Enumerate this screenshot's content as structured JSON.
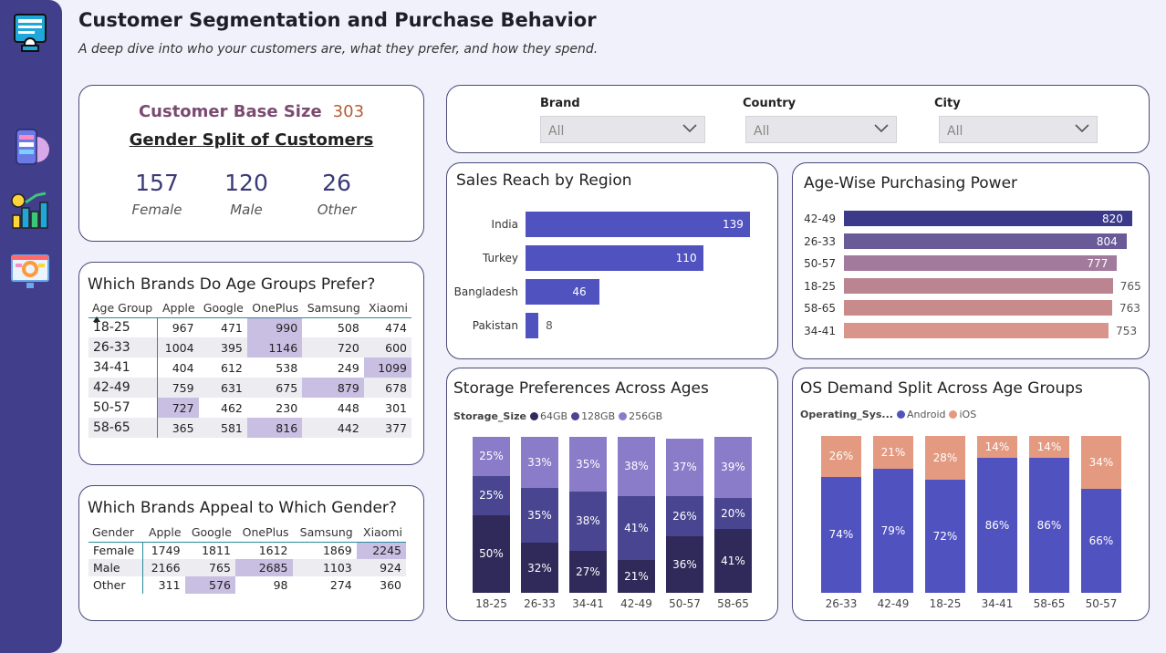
{
  "header": {
    "title": "Customer Segmentation and Purchase Behavior",
    "subtitle": "A deep dive into who your customers are, what they prefer, and how they spend."
  },
  "sidebar": {
    "icons": [
      "dashboard-icon",
      "mobile-app-icon",
      "chart-growth-icon",
      "analytics-monitor-icon"
    ]
  },
  "customer_card": {
    "base_label": "Customer Base Size",
    "base_value": "303",
    "gender_title": "Gender Split of Customers",
    "genders": [
      {
        "value": "157",
        "label": "Female"
      },
      {
        "value": "120",
        "label": "Male"
      },
      {
        "value": "26",
        "label": "Other"
      }
    ]
  },
  "filters": [
    {
      "label": "Brand",
      "value": "All"
    },
    {
      "label": "Country",
      "value": "All"
    },
    {
      "label": "City",
      "value": "All"
    }
  ],
  "age_brand_table": {
    "title": "Which Brands Do Age Groups Prefer?",
    "columns": [
      "Age Group",
      "Apple",
      "Google",
      "OnePlus",
      "Samsung",
      "Xiaomi"
    ],
    "rows": [
      {
        "label": "18-25",
        "values": [
          "967",
          "471",
          "990",
          "508",
          "474"
        ],
        "hl": 2
      },
      {
        "label": "26-33",
        "values": [
          "1004",
          "395",
          "1146",
          "720",
          "600"
        ],
        "hl": 2
      },
      {
        "label": "34-41",
        "values": [
          "404",
          "612",
          "538",
          "249",
          "1099"
        ],
        "hl": 4
      },
      {
        "label": "42-49",
        "values": [
          "759",
          "631",
          "675",
          "879",
          "678"
        ],
        "hl": 3
      },
      {
        "label": "50-57",
        "values": [
          "727",
          "462",
          "230",
          "448",
          "301"
        ],
        "hl": 0
      },
      {
        "label": "58-65",
        "values": [
          "365",
          "581",
          "816",
          "442",
          "377"
        ],
        "hl": 2
      }
    ]
  },
  "gender_brand_table": {
    "title": "Which Brands Appeal to Which Gender?",
    "columns": [
      "Gender",
      "Apple",
      "Google",
      "OnePlus",
      "Samsung",
      "Xiaomi"
    ],
    "rows": [
      {
        "label": "Female",
        "values": [
          "1749",
          "1811",
          "1612",
          "1869",
          "2245"
        ],
        "hl": 4
      },
      {
        "label": "Male",
        "values": [
          "2166",
          "765",
          "2685",
          "1103",
          "924"
        ],
        "hl": 2
      },
      {
        "label": "Other",
        "values": [
          "311",
          "576",
          "98",
          "274",
          "360"
        ],
        "hl": 1
      }
    ]
  },
  "chart_data": [
    {
      "type": "bar",
      "orientation": "horizontal",
      "title": "Sales Reach by Region",
      "categories": [
        "India",
        "Turkey",
        "Bangladesh",
        "Pakistan"
      ],
      "values": [
        139,
        110,
        46,
        8
      ],
      "color": "#5052c0"
    },
    {
      "type": "bar",
      "orientation": "horizontal",
      "title": "Age-Wise Purchasing Power",
      "categories": [
        "42-49",
        "26-33",
        "50-57",
        "18-25",
        "58-65",
        "34-41"
      ],
      "values": [
        820,
        804,
        777,
        765,
        763,
        753
      ],
      "colors": [
        "#3b3a8a",
        "#6a5a98",
        "#a17a9c",
        "#ba8490",
        "#c98a8c",
        "#d8958c"
      ]
    },
    {
      "type": "bar",
      "stacked": "100%",
      "title": "Storage Preferences Across Ages",
      "legend_title": "Storage_Size",
      "categories": [
        "18-25",
        "26-33",
        "34-41",
        "42-49",
        "50-57",
        "58-65"
      ],
      "series": [
        {
          "name": "64GB",
          "color": "#302a5a",
          "values": [
            50,
            32,
            27,
            21,
            36,
            41
          ]
        },
        {
          "name": "128GB",
          "color": "#4a4590",
          "values": [
            25,
            35,
            38,
            41,
            26,
            20
          ]
        },
        {
          "name": "256GB",
          "color": "#8a7cc8",
          "values": [
            25,
            33,
            35,
            38,
            37,
            39
          ]
        }
      ]
    },
    {
      "type": "bar",
      "stacked": "100%",
      "title": "OS Demand Split Across Age Groups",
      "legend_title": "Operating_Sys...",
      "categories": [
        "26-33",
        "42-49",
        "18-25",
        "34-41",
        "58-65",
        "50-57"
      ],
      "series": [
        {
          "name": "Android",
          "color": "#5052c0",
          "values": [
            74,
            79,
            72,
            86,
            86,
            66
          ]
        },
        {
          "name": "iOS",
          "color": "#e39a80",
          "values": [
            26,
            21,
            28,
            14,
            14,
            34
          ]
        }
      ]
    }
  ]
}
